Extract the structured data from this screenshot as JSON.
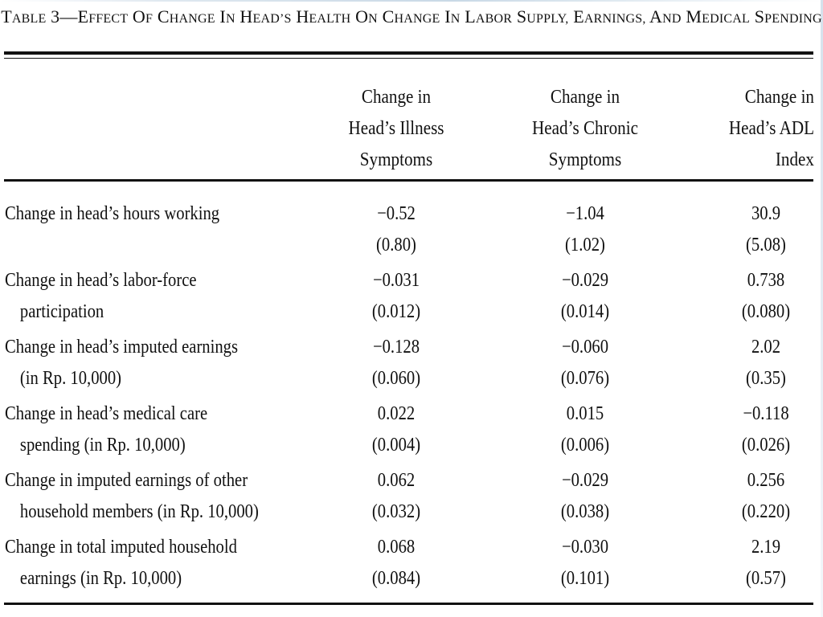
{
  "table": {
    "title": "Table 3—Effect of Change in Head’s Health on Change in Labor Supply, Earnings, and Medical Spending",
    "columns": [
      [
        "Change in",
        "Head’s Illness",
        "Symptoms"
      ],
      [
        "Change in",
        "Head’s Chronic",
        "Symptoms"
      ],
      [
        "Change in",
        "Head’s ADL",
        "Index"
      ]
    ],
    "rows": [
      {
        "label": [
          "Change in head’s hours working",
          ""
        ],
        "coefs": [
          "−0.52",
          "−1.04",
          "30.9"
        ],
        "se": [
          "(0.80)",
          "(1.02)",
          "(5.08)"
        ]
      },
      {
        "label": [
          "Change in head’s labor-force",
          "participation"
        ],
        "coefs": [
          "−0.031",
          "−0.029",
          "0.738"
        ],
        "se": [
          "(0.012)",
          "(0.014)",
          "(0.080)"
        ]
      },
      {
        "label": [
          "Change in head’s imputed earnings",
          "(in Rp. 10,000)"
        ],
        "coefs": [
          "−0.128",
          "−0.060",
          "2.02"
        ],
        "se": [
          "(0.060)",
          "(0.076)",
          "(0.35)"
        ]
      },
      {
        "label": [
          "Change in head’s medical care",
          "spending (in Rp. 10,000)"
        ],
        "coefs": [
          "0.022",
          "0.015",
          "−0.118"
        ],
        "se": [
          "(0.004)",
          "(0.006)",
          "(0.026)"
        ]
      },
      {
        "label": [
          "Change in imputed earnings of other",
          "household members (in Rp. 10,000)"
        ],
        "coefs": [
          "0.062",
          "−0.029",
          "0.256"
        ],
        "se": [
          "(0.032)",
          "(0.038)",
          "(0.220)"
        ]
      },
      {
        "label": [
          "Change in total imputed household",
          "earnings (in Rp. 10,000)"
        ],
        "coefs": [
          "0.068",
          "−0.030",
          "2.19"
        ],
        "se": [
          "(0.084)",
          "(0.101)",
          "(0.57)"
        ]
      }
    ]
  }
}
